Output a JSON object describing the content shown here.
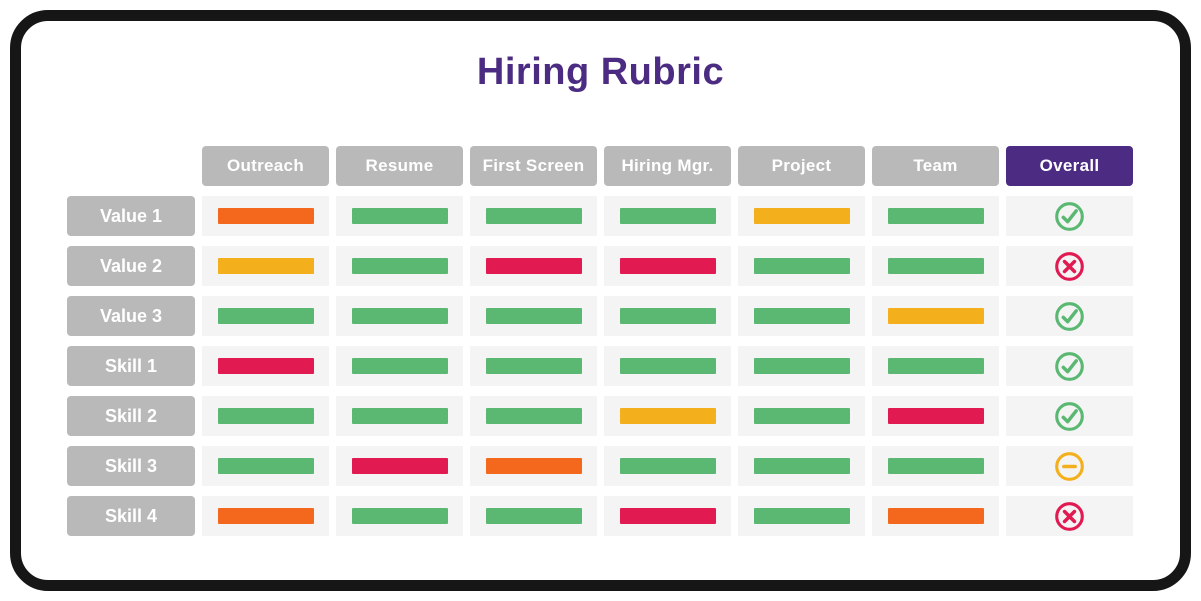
{
  "title": "Hiring Rubric",
  "colors": {
    "purple": "#4B2C82",
    "green": "#5BB873",
    "red": "#E11A52",
    "orange": "#F4681D",
    "yellow": "#F3B01C",
    "header_gray": "#B9B9B9",
    "header_text": "#FFFFFF",
    "cell_bg": "#F4F4F4",
    "frame": "#161616"
  },
  "icon_names": {
    "check": "check-circle-icon",
    "cross": "cross-circle-icon",
    "minus": "minus-circle-icon"
  },
  "chart_data": {
    "type": "table",
    "title": "Hiring Rubric",
    "columns": [
      "Outreach",
      "Resume",
      "First Screen",
      "Hiring Mgr.",
      "Project",
      "Team",
      "Overall"
    ],
    "rows": [
      {
        "label": "Value 1",
        "scores": [
          "orange",
          "green",
          "green",
          "green",
          "yellow",
          "green"
        ],
        "overall": {
          "icon": "check",
          "color": "green"
        }
      },
      {
        "label": "Value 2",
        "scores": [
          "yellow",
          "green",
          "red",
          "red",
          "green",
          "green"
        ],
        "overall": {
          "icon": "cross",
          "color": "red"
        }
      },
      {
        "label": "Value 3",
        "scores": [
          "green",
          "green",
          "green",
          "green",
          "green",
          "yellow"
        ],
        "overall": {
          "icon": "check",
          "color": "green"
        }
      },
      {
        "label": "Skill 1",
        "scores": [
          "red",
          "green",
          "green",
          "green",
          "green",
          "green"
        ],
        "overall": {
          "icon": "check",
          "color": "green"
        }
      },
      {
        "label": "Skill 2",
        "scores": [
          "green",
          "green",
          "green",
          "yellow",
          "green",
          "red"
        ],
        "overall": {
          "icon": "check",
          "color": "green"
        }
      },
      {
        "label": "Skill 3",
        "scores": [
          "green",
          "red",
          "orange",
          "green",
          "green",
          "green"
        ],
        "overall": {
          "icon": "minus",
          "color": "yellow"
        }
      },
      {
        "label": "Skill 4",
        "scores": [
          "orange",
          "green",
          "green",
          "red",
          "green",
          "orange"
        ],
        "overall": {
          "icon": "cross",
          "color": "red"
        }
      }
    ]
  }
}
